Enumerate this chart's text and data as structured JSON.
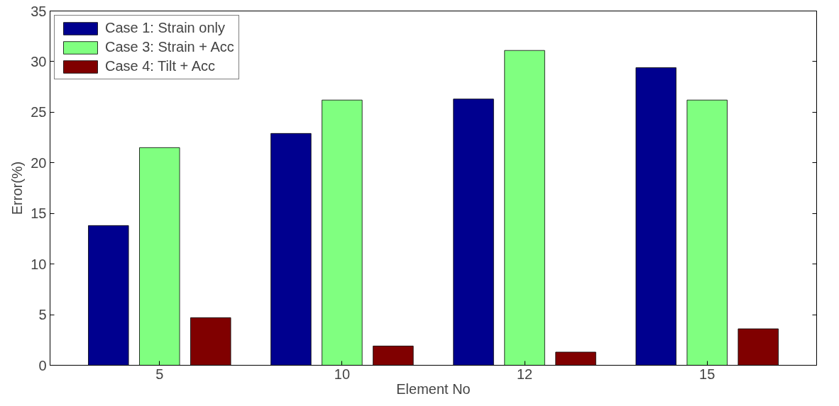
{
  "chart_data": {
    "type": "bar",
    "xlabel": "Element No",
    "ylabel": "Error(%)",
    "categories": [
      "5",
      "10",
      "12",
      "15"
    ],
    "series": [
      {
        "name": "Case 1: Strain only",
        "color": "#00008f",
        "values": [
          13.8,
          22.9,
          26.3,
          29.4
        ]
      },
      {
        "name": "Case 3: Strain + Acc",
        "color": "#80ff80",
        "values": [
          21.5,
          26.2,
          31.1,
          26.2
        ]
      },
      {
        "name": "Case 4: Tilt + Acc",
        "color": "#800000",
        "values": [
          4.7,
          1.9,
          1.3,
          3.6
        ]
      }
    ],
    "ylim": [
      0,
      35
    ],
    "yticks": [
      0,
      5,
      10,
      15,
      20,
      25,
      30,
      35
    ],
    "grid": false,
    "legend": "top left"
  }
}
